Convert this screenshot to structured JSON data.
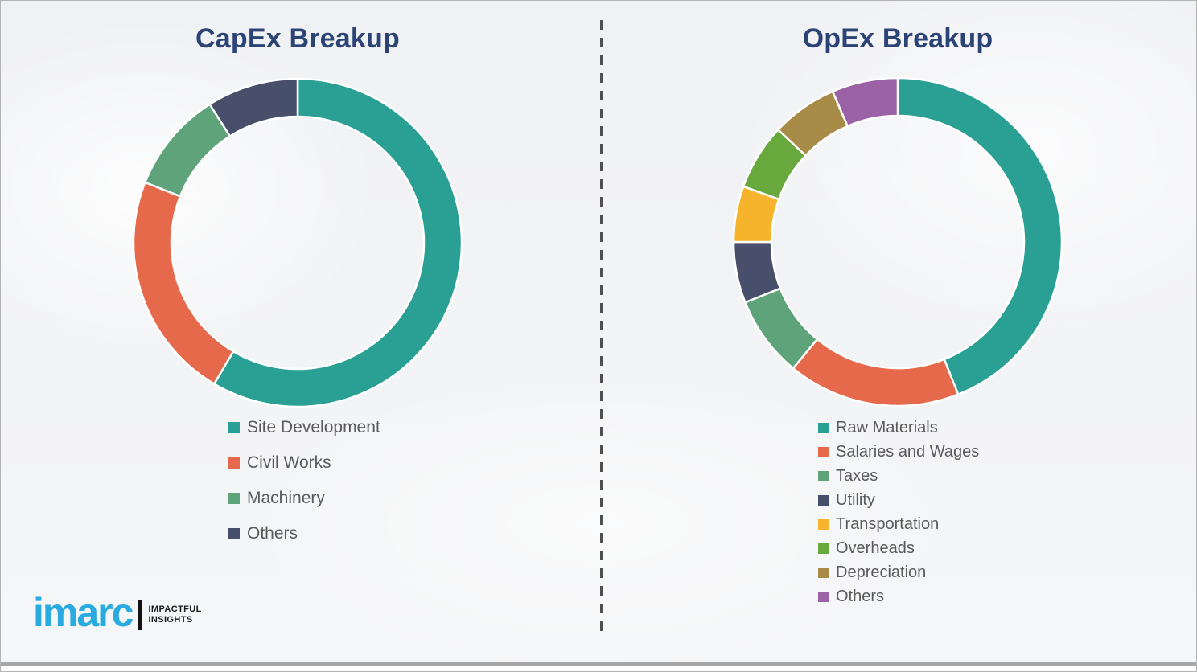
{
  "page": {
    "background_color": "#f2f3f5",
    "divider_color": "#4f4f4f",
    "bottom_bar_color": "#a6a6a6",
    "legend_text_color": "#595959"
  },
  "chart_data": [
    {
      "type": "pie",
      "variant": "donut",
      "title": "CapEx Breakup",
      "title_color": "#2c4375",
      "legend_position": "below-left",
      "start_angle_deg": 0,
      "direction": "clockwise",
      "note": "segment percentages estimated from arc angles; no numeric labels shown in image",
      "series": [
        {
          "name": "Site Development",
          "value": 58.5,
          "color": "#2aa094"
        },
        {
          "name": "Civil Works",
          "value": 22.5,
          "color": "#e5694a"
        },
        {
          "name": "Machinery",
          "value": 10.0,
          "color": "#5fa37b"
        },
        {
          "name": "Others",
          "value": 9.0,
          "color": "#474f6b"
        }
      ]
    },
    {
      "type": "pie",
      "variant": "donut",
      "title": "OpEx Breakup",
      "title_color": "#2c4375",
      "legend_position": "below-left",
      "start_angle_deg": 0,
      "direction": "clockwise",
      "note": "segment percentages estimated from arc angles; no numeric labels shown in image",
      "series": [
        {
          "name": "Raw Materials",
          "value": 44.0,
          "color": "#2aa094"
        },
        {
          "name": "Salaries and Wages",
          "value": 17.0,
          "color": "#e5694a"
        },
        {
          "name": "Taxes",
          "value": 8.0,
          "color": "#5fa37b"
        },
        {
          "name": "Utility",
          "value": 6.0,
          "color": "#474f6b"
        },
        {
          "name": "Transportation",
          "value": 5.5,
          "color": "#f6b42c"
        },
        {
          "name": "Overheads",
          "value": 6.5,
          "color": "#68a93d"
        },
        {
          "name": "Depreciation",
          "value": 6.5,
          "color": "#a78b47"
        },
        {
          "name": "Others",
          "value": 6.5,
          "color": "#9c62a6"
        }
      ]
    }
  ],
  "logo": {
    "brand": "imarc",
    "tagline_line1": "IMPACTFUL",
    "tagline_line2": "INSIGHTS",
    "brand_color": "#29abe2"
  }
}
